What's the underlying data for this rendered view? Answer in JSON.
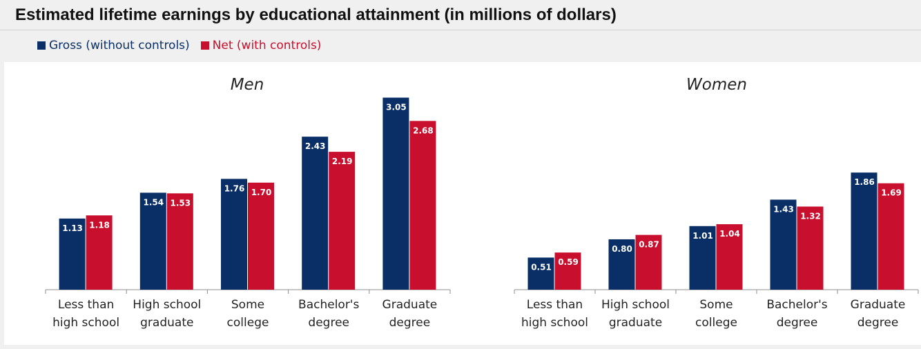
{
  "title": "Estimated lifetime earnings by educational attainment (in millions of dollars)",
  "legend": {
    "gross_label": "Gross (without controls)",
    "net_label": "Net (with controls)"
  },
  "colors": {
    "gross": "#0a2f66",
    "net": "#c8102e"
  },
  "chart_data": [
    {
      "type": "bar",
      "title": "Men",
      "categories": [
        [
          "Less than",
          "high school"
        ],
        [
          "High school",
          "graduate"
        ],
        [
          "Some",
          "college"
        ],
        [
          "Bachelor's",
          "degree"
        ],
        [
          "Graduate",
          "degree"
        ]
      ],
      "series": [
        {
          "name": "Gross (without controls)",
          "values": [
            1.13,
            1.54,
            1.76,
            2.43,
            3.05
          ]
        },
        {
          "name": "Net (with controls)",
          "values": [
            1.18,
            1.53,
            1.7,
            2.19,
            2.68
          ]
        }
      ],
      "value_labels": [
        [
          "1.13",
          "1.54",
          "1.76",
          "2.43",
          "3.05"
        ],
        [
          "1.18",
          "1.53",
          "1.70",
          "2.19",
          "2.68"
        ]
      ],
      "ylim": [
        0,
        3.1
      ],
      "grid": false
    },
    {
      "type": "bar",
      "title": "Women",
      "categories": [
        [
          "Less than",
          "high school"
        ],
        [
          "High school",
          "graduate"
        ],
        [
          "Some",
          "college"
        ],
        [
          "Bachelor's",
          "degree"
        ],
        [
          "Graduate",
          "degree"
        ]
      ],
      "series": [
        {
          "name": "Gross (without controls)",
          "values": [
            0.51,
            0.8,
            1.01,
            1.43,
            1.86
          ]
        },
        {
          "name": "Net (with controls)",
          "values": [
            0.59,
            0.87,
            1.04,
            1.32,
            1.69
          ]
        }
      ],
      "value_labels": [
        [
          "0.51",
          "0.80",
          "1.01",
          "1.43",
          "1.86"
        ],
        [
          "0.59",
          "0.87",
          "1.04",
          "1.32",
          "1.69"
        ]
      ],
      "ylim": [
        0,
        3.1
      ],
      "grid": false
    }
  ]
}
